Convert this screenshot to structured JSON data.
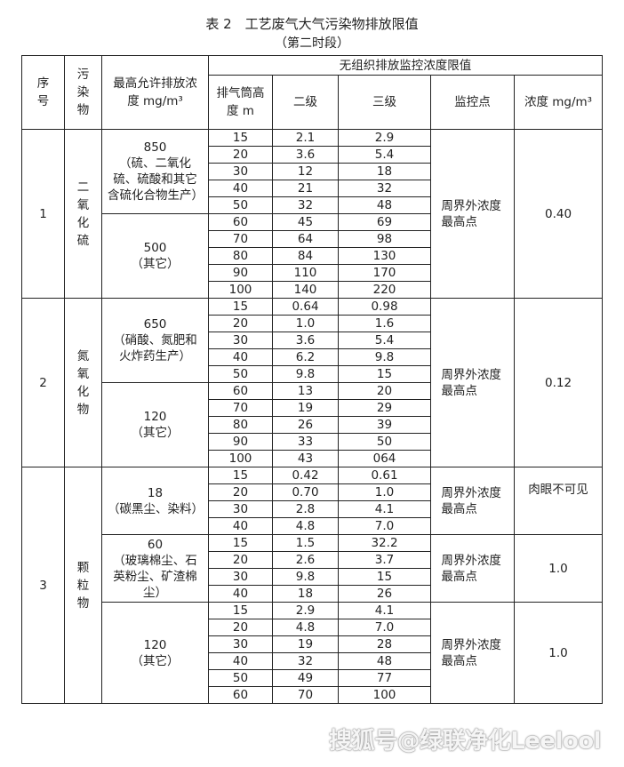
{
  "title": "表 2　工艺废气大气污染物排放限值",
  "subtitle": "（第二时段）",
  "headers": {
    "no": "序号",
    "pollutant": "污染物",
    "max_conc": "最高允许排放浓度 mg/m³",
    "group": "无组织排放监控浓度限值",
    "stack_height": "排气筒高度 m",
    "level2": "二级",
    "level3": "三级",
    "monitor_point": "监控点",
    "concentration": "浓度 mg/m³"
  },
  "pollutants": [
    {
      "no": "1",
      "name": "二氧化硫",
      "subgroups": [
        {
          "limit": "850",
          "note": "（硫、二氧化硫、硫酸和其它含硫化合物生产）",
          "rows": [
            [
              "15",
              "2.1",
              "2.9"
            ],
            [
              "20",
              "3.6",
              "5.4"
            ],
            [
              "30",
              "12",
              "18"
            ],
            [
              "40",
              "21",
              "32"
            ],
            [
              "50",
              "32",
              "48"
            ]
          ]
        },
        {
          "limit": "500",
          "note": "（其它）",
          "rows": [
            [
              "60",
              "45",
              "69"
            ],
            [
              "70",
              "64",
              "98"
            ],
            [
              "80",
              "84",
              "130"
            ],
            [
              "90",
              "110",
              "170"
            ],
            [
              "100",
              "140",
              "220"
            ]
          ]
        }
      ],
      "monitors": [
        {
          "point": "周界外浓度最高点",
          "conc": "0.40",
          "rows": 10
        }
      ]
    },
    {
      "no": "2",
      "name": "氮氧化物",
      "subgroups": [
        {
          "limit": "650",
          "note": "（硝酸、氮肥和火炸药生产）",
          "rows": [
            [
              "15",
              "0.64",
              "0.98"
            ],
            [
              "20",
              "1.0",
              "1.6"
            ],
            [
              "30",
              "3.6",
              "5.4"
            ],
            [
              "40",
              "6.2",
              "9.8"
            ],
            [
              "50",
              "9.8",
              "15"
            ]
          ]
        },
        {
          "limit": "120",
          "note": "（其它）",
          "rows": [
            [
              "60",
              "13",
              "20"
            ],
            [
              "70",
              "19",
              "29"
            ],
            [
              "80",
              "26",
              "39"
            ],
            [
              "90",
              "33",
              "50"
            ],
            [
              "100",
              "43",
              "064"
            ]
          ]
        }
      ],
      "monitors": [
        {
          "point": "周界外浓度最高点",
          "conc": "0.12",
          "rows": 10
        }
      ]
    },
    {
      "no": "3",
      "name": "颗粒物",
      "subgroups": [
        {
          "limit": "18",
          "note": "（碳黑尘、染料）",
          "rows": [
            [
              "15",
              "0.42",
              "0.61"
            ],
            [
              "20",
              "0.70",
              "1.0"
            ],
            [
              "30",
              "2.8",
              "4.1"
            ],
            [
              "40",
              "4.8",
              "7.0"
            ]
          ]
        },
        {
          "limit": "60",
          "note": "（玻璃棉尘、石英粉尘、矿渣棉尘）",
          "rows": [
            [
              "15",
              "1.5",
              "32.2"
            ],
            [
              "20",
              "2.6",
              "3.7"
            ],
            [
              "30",
              "9.8",
              "15"
            ],
            [
              "40",
              "18",
              "26"
            ]
          ]
        },
        {
          "limit": "120",
          "note": "（其它）",
          "rows": [
            [
              "15",
              "2.9",
              "4.1"
            ],
            [
              "20",
              "4.8",
              "7.0"
            ],
            [
              "30",
              "19",
              "28"
            ],
            [
              "40",
              "32",
              "48"
            ],
            [
              "50",
              "49",
              "77"
            ],
            [
              "60",
              "70",
              "100"
            ]
          ]
        }
      ],
      "monitors": [
        {
          "point": "周界外浓度最高点",
          "conc": "肉眼不可见",
          "rows": 4
        },
        {
          "point": "周界外浓度最高点",
          "conc": "1.0",
          "rows": 4
        },
        {
          "point": "周界外浓度最高点",
          "conc": "1.0",
          "rows": 6
        }
      ]
    }
  ],
  "watermark": "搜狐号@绿联净化Leelool"
}
